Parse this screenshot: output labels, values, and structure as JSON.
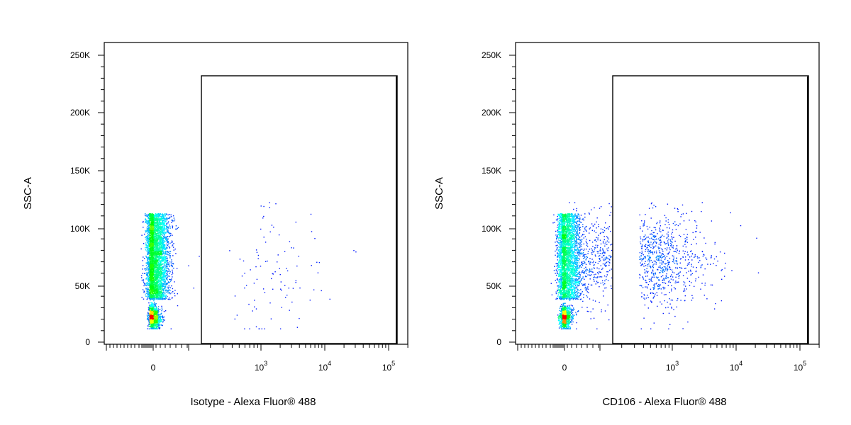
{
  "chart_data": [
    {
      "type": "scatter",
      "subtype": "flow-cytometry-density-dot-plot",
      "xlabel": "Isotype - Alexa Fluor® 488",
      "ylabel": "SSC-A",
      "x_scale": "biexponential",
      "y_ticks": [
        "0",
        "50K",
        "100K",
        "150K",
        "200K",
        "250K"
      ],
      "y_tick_values": [
        0,
        50000,
        100000,
        150000,
        200000,
        250000
      ],
      "x_ticks": [
        {
          "base": "0",
          "exp": ""
        },
        {
          "base": "10",
          "exp": "3"
        },
        {
          "base": "10",
          "exp": "4"
        },
        {
          "base": "10",
          "exp": "5"
        }
      ],
      "x_tick_values": [
        0,
        1000,
        10000,
        100000
      ],
      "ylim": [
        0,
        262144
      ],
      "xlim": [
        -500,
        200000
      ],
      "gate": {
        "x_min": 300,
        "x_max": 200000,
        "y_min": 0,
        "y_max": 232000
      },
      "populations": [
        {
          "name": "negative",
          "x_center": 10,
          "x_spread": 45,
          "y_center": 75000,
          "y_spread": 22000,
          "weight": 0.78
        },
        {
          "name": "low-ssc",
          "x_center": -5,
          "x_spread": 25,
          "y_center": 22000,
          "y_spread": 5000,
          "weight": 0.2
        },
        {
          "name": "positive",
          "x_center": 1500,
          "x_spread": 1500,
          "y_center": 60000,
          "y_spread": 30000,
          "weight": 0.02
        }
      ],
      "grid": false,
      "density_colors": [
        "#0000ff",
        "#00ffff",
        "#00ff00",
        "#ffff00",
        "#ff0000"
      ]
    },
    {
      "type": "scatter",
      "subtype": "flow-cytometry-density-dot-plot",
      "xlabel": "CD106 - Alexa Fluor® 488",
      "ylabel": "SSC-A",
      "x_scale": "biexponential",
      "y_ticks": [
        "0",
        "50K",
        "100K",
        "150K",
        "200K",
        "250K"
      ],
      "y_tick_values": [
        0,
        50000,
        100000,
        150000,
        200000,
        250000
      ],
      "x_ticks": [
        {
          "base": "0",
          "exp": ""
        },
        {
          "base": "10",
          "exp": "3"
        },
        {
          "base": "10",
          "exp": "4"
        },
        {
          "base": "10",
          "exp": "5"
        }
      ],
      "x_tick_values": [
        0,
        1000,
        10000,
        100000
      ],
      "ylim": [
        0,
        262144
      ],
      "xlim": [
        -500,
        200000
      ],
      "gate": {
        "x_min": 300,
        "x_max": 200000,
        "y_min": 0,
        "y_max": 232000
      },
      "populations": [
        {
          "name": "negative",
          "x_center": 10,
          "x_spread": 45,
          "y_center": 75000,
          "y_spread": 22000,
          "weight": 0.6
        },
        {
          "name": "low-ssc",
          "x_center": -5,
          "x_spread": 25,
          "y_center": 22000,
          "y_spread": 5000,
          "weight": 0.18
        },
        {
          "name": "positive",
          "x_center": 450,
          "x_spread": 400,
          "y_center": 72000,
          "y_spread": 20000,
          "weight": 0.22
        }
      ],
      "grid": false,
      "density_colors": [
        "#0000ff",
        "#00ffff",
        "#00ff00",
        "#ffff00",
        "#ff0000"
      ]
    }
  ]
}
